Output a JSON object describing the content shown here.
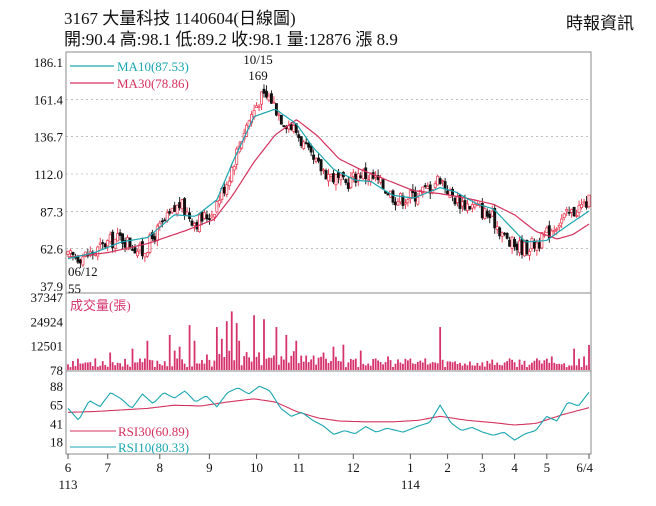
{
  "header": {
    "title": "3167  大量科技 1140604(日線圖)",
    "stats": "開:90.4 高:98.1 低:89.2 收:98.1 量:12876 漲 8.9",
    "source": "時報資訊"
  },
  "chart_data": {
    "type": "candlestick",
    "colors": {
      "up": "#e8304a",
      "down": "#111111",
      "ma10": "#1aa6b0",
      "ma30": "#d4325e",
      "volume": "#d6336c",
      "rsi10": "#1aa6b0",
      "rsi30": "#d4325e"
    },
    "price_panel": {
      "y_ticks": [
        "186.1",
        "161.4",
        "136.7",
        "112.0",
        "87.3",
        "62.6",
        "37.9"
      ],
      "ylim": [
        37.9,
        186.1
      ],
      "legend": [
        {
          "label": "MA10(87.53)",
          "color": "#1aa6b0"
        },
        {
          "label": "MA30(78.86)",
          "color": "#d4325e"
        }
      ],
      "annotations": [
        {
          "date_label": "10/15",
          "value_label": "169",
          "kind": "high",
          "value": 169
        },
        {
          "date_label": "06/12",
          "value_label": "55",
          "kind": "low",
          "value": 55
        }
      ],
      "anchors": [
        [
          0,
          57
        ],
        [
          6,
          58
        ],
        [
          10,
          60
        ],
        [
          14,
          66
        ],
        [
          20,
          70
        ],
        [
          28,
          60
        ],
        [
          34,
          75
        ],
        [
          42,
          92
        ],
        [
          48,
          80
        ],
        [
          54,
          86
        ],
        [
          60,
          108
        ],
        [
          66,
          140
        ],
        [
          72,
          162
        ],
        [
          76,
          163
        ],
        [
          80,
          150
        ],
        [
          86,
          140
        ],
        [
          92,
          120
        ],
        [
          98,
          112
        ],
        [
          104,
          105
        ],
        [
          110,
          113
        ],
        [
          116,
          108
        ],
        [
          124,
          95
        ],
        [
          130,
          98
        ],
        [
          136,
          103
        ],
        [
          140,
          110
        ],
        [
          144,
          98
        ],
        [
          148,
          93
        ],
        [
          154,
          90
        ],
        [
          160,
          82
        ],
        [
          166,
          66
        ],
        [
          172,
          63
        ],
        [
          178,
          68
        ],
        [
          184,
          80
        ],
        [
          190,
          87
        ],
        [
          196,
          94
        ]
      ],
      "ma10": [
        [
          0,
          56
        ],
        [
          10,
          60
        ],
        [
          20,
          67
        ],
        [
          30,
          70
        ],
        [
          40,
          85
        ],
        [
          48,
          84
        ],
        [
          56,
          95
        ],
        [
          62,
          120
        ],
        [
          70,
          150
        ],
        [
          78,
          155
        ],
        [
          86,
          145
        ],
        [
          92,
          130
        ],
        [
          100,
          115
        ],
        [
          108,
          108
        ],
        [
          114,
          107
        ],
        [
          122,
          98
        ],
        [
          130,
          96
        ],
        [
          140,
          103
        ],
        [
          146,
          100
        ],
        [
          154,
          92
        ],
        [
          160,
          89
        ],
        [
          166,
          78
        ],
        [
          172,
          67
        ],
        [
          180,
          68
        ],
        [
          188,
          78
        ],
        [
          196,
          87.5
        ]
      ],
      "ma30": [
        [
          0,
          57
        ],
        [
          15,
          60
        ],
        [
          30,
          66
        ],
        [
          45,
          75
        ],
        [
          55,
          82
        ],
        [
          62,
          98
        ],
        [
          70,
          120
        ],
        [
          78,
          138
        ],
        [
          86,
          148
        ],
        [
          94,
          137
        ],
        [
          102,
          122
        ],
        [
          110,
          115
        ],
        [
          120,
          108
        ],
        [
          130,
          101
        ],
        [
          140,
          99
        ],
        [
          150,
          96
        ],
        [
          160,
          92
        ],
        [
          168,
          85
        ],
        [
          176,
          74
        ],
        [
          184,
          69
        ],
        [
          190,
          72
        ],
        [
          196,
          78.9
        ]
      ]
    },
    "volume_panel": {
      "label": "成交量(張)",
      "y_ticks": [
        "37347",
        "24924",
        "12501",
        "78"
      ],
      "ylim": [
        78,
        37347
      ],
      "peaks": [
        [
          10,
          6000
        ],
        [
          16,
          9000
        ],
        [
          24,
          11000
        ],
        [
          30,
          15000
        ],
        [
          38,
          18000
        ],
        [
          40,
          10000
        ],
        [
          42,
          12000
        ],
        [
          46,
          23000
        ],
        [
          48,
          15000
        ],
        [
          52,
          8000
        ],
        [
          56,
          22000
        ],
        [
          58,
          16000
        ],
        [
          60,
          25000
        ],
        [
          62,
          30000
        ],
        [
          63,
          24000
        ],
        [
          64,
          15000
        ],
        [
          70,
          28000
        ],
        [
          74,
          26000
        ],
        [
          78,
          22000
        ],
        [
          82,
          18000
        ],
        [
          86,
          15000
        ],
        [
          96,
          9000
        ],
        [
          100,
          12000
        ],
        [
          104,
          13000
        ],
        [
          110,
          10000
        ],
        [
          120,
          7000
        ],
        [
          128,
          5000
        ],
        [
          134,
          6000
        ],
        [
          140,
          22000
        ],
        [
          156,
          4000
        ],
        [
          176,
          6000
        ],
        [
          182,
          7000
        ],
        [
          186,
          3000
        ],
        [
          190,
          11000
        ],
        [
          194,
          7000
        ],
        [
          196,
          12876
        ]
      ]
    },
    "rsi_panel": {
      "y_ticks": [
        "88",
        "65",
        "41",
        "18"
      ],
      "ylim": [
        10,
        92
      ],
      "legend": [
        {
          "label": "RSI30(60.89)",
          "color": "#d4325e"
        },
        {
          "label": "RSI10(80.33)",
          "color": "#1aa6b0"
        }
      ],
      "rsi10": [
        [
          0,
          60
        ],
        [
          4,
          45
        ],
        [
          8,
          70
        ],
        [
          12,
          62
        ],
        [
          16,
          80
        ],
        [
          20,
          72
        ],
        [
          24,
          60
        ],
        [
          28,
          78
        ],
        [
          32,
          66
        ],
        [
          36,
          80
        ],
        [
          40,
          73
        ],
        [
          44,
          82
        ],
        [
          48,
          68
        ],
        [
          52,
          76
        ],
        [
          56,
          62
        ],
        [
          60,
          80
        ],
        [
          64,
          86
        ],
        [
          68,
          78
        ],
        [
          72,
          88
        ],
        [
          76,
          82
        ],
        [
          80,
          60
        ],
        [
          84,
          50
        ],
        [
          88,
          55
        ],
        [
          92,
          45
        ],
        [
          96,
          38
        ],
        [
          100,
          27
        ],
        [
          104,
          32
        ],
        [
          108,
          28
        ],
        [
          112,
          37
        ],
        [
          116,
          30
        ],
        [
          120,
          35
        ],
        [
          126,
          30
        ],
        [
          132,
          38
        ],
        [
          136,
          42
        ],
        [
          140,
          64
        ],
        [
          144,
          42
        ],
        [
          148,
          32
        ],
        [
          152,
          36
        ],
        [
          156,
          30
        ],
        [
          160,
          26
        ],
        [
          164,
          30
        ],
        [
          168,
          20
        ],
        [
          172,
          28
        ],
        [
          176,
          32
        ],
        [
          180,
          50
        ],
        [
          184,
          44
        ],
        [
          188,
          68
        ],
        [
          192,
          63
        ],
        [
          196,
          80.3
        ]
      ],
      "rsi30": [
        [
          0,
          55
        ],
        [
          10,
          56
        ],
        [
          20,
          58
        ],
        [
          30,
          60
        ],
        [
          40,
          64
        ],
        [
          50,
          63
        ],
        [
          60,
          68
        ],
        [
          70,
          72
        ],
        [
          78,
          68
        ],
        [
          86,
          56
        ],
        [
          94,
          48
        ],
        [
          102,
          44
        ],
        [
          112,
          43
        ],
        [
          122,
          43
        ],
        [
          132,
          45
        ],
        [
          140,
          50
        ],
        [
          150,
          45
        ],
        [
          160,
          42
        ],
        [
          168,
          39
        ],
        [
          176,
          41
        ],
        [
          186,
          52
        ],
        [
          196,
          60.9
        ]
      ]
    },
    "x_axis": {
      "ticks": [
        {
          "label": "6",
          "i": 0
        },
        {
          "label": "7",
          "i": 16
        },
        {
          "label": "8",
          "i": 37
        },
        {
          "label": "9",
          "i": 57
        },
        {
          "label": "10",
          "i": 76
        },
        {
          "label": "11",
          "i": 93
        },
        {
          "label": "12",
          "i": 115
        },
        {
          "label": "1",
          "i": 138
        },
        {
          "label": "2",
          "i": 153
        },
        {
          "label": "3",
          "i": 167
        },
        {
          "label": "4",
          "i": 180
        },
        {
          "label": "5",
          "i": 193
        },
        {
          "label": "6/4",
          "i": 210
        }
      ],
      "year_labels": [
        {
          "label": "113",
          "i": 0
        },
        {
          "label": "114",
          "i": 138
        }
      ]
    }
  }
}
